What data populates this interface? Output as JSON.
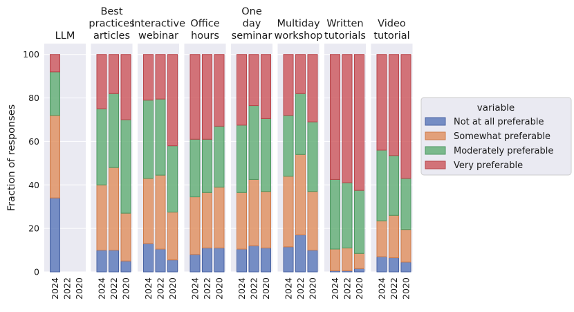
{
  "chart_data": {
    "type": "bar",
    "stacked": true,
    "ylabel": "Fraction of responses",
    "ylim": [
      0,
      105
    ],
    "yticks": [
      0,
      20,
      40,
      60,
      80,
      100
    ],
    "grid": true,
    "legend": {
      "title": "variable",
      "placement": "right",
      "entries": [
        "Not at all preferable",
        "Somewhat preferable",
        "Moderately preferable",
        "Very preferable"
      ]
    },
    "colors": [
      "#5875b8",
      "#e08d5b",
      "#5fac72",
      "#cc5459"
    ],
    "years": [
      "2024",
      "2022",
      "2020"
    ],
    "facets": [
      {
        "title": [
          "LLM"
        ],
        "values": {
          "2024": [
            34,
            38,
            20,
            8
          ],
          "2022": null,
          "2020": null
        }
      },
      {
        "title": [
          "Best",
          "practices",
          "articles"
        ],
        "values": {
          "2024": [
            10,
            30,
            35,
            25
          ],
          "2022": [
            10,
            38,
            34,
            18
          ],
          "2020": [
            5,
            22,
            43,
            30
          ]
        }
      },
      {
        "title": [
          "Interactive",
          "webinar"
        ],
        "values": {
          "2024": [
            13,
            30,
            36,
            21
          ],
          "2022": [
            10.5,
            34,
            35,
            20.5
          ],
          "2020": [
            5.5,
            22,
            30.5,
            42
          ]
        }
      },
      {
        "title": [
          "Office",
          "hours"
        ],
        "values": {
          "2024": [
            8,
            26.5,
            26.5,
            39
          ],
          "2022": [
            11,
            25.5,
            24.5,
            39
          ],
          "2020": [
            11,
            28,
            28,
            33
          ]
        }
      },
      {
        "title": [
          "One",
          "day",
          "seminar"
        ],
        "values": {
          "2024": [
            10.5,
            26,
            31,
            32.5
          ],
          "2022": [
            12,
            30.5,
            34,
            23.5
          ],
          "2020": [
            11,
            26,
            33.5,
            29.5
          ]
        }
      },
      {
        "title": [
          "Multiday",
          "workshop"
        ],
        "values": {
          "2024": [
            11.5,
            32.5,
            28,
            28
          ],
          "2022": [
            17,
            37,
            28,
            18
          ],
          "2020": [
            10,
            27,
            32,
            31
          ]
        }
      },
      {
        "title": [
          "Written",
          "tutorials"
        ],
        "values": {
          "2024": [
            0.5,
            10,
            32,
            57.5
          ],
          "2022": [
            0.5,
            10.5,
            30,
            59
          ],
          "2020": [
            1.5,
            7,
            29,
            62.5
          ]
        }
      },
      {
        "title": [
          "Video",
          "tutorial"
        ],
        "values": {
          "2024": [
            7,
            16.5,
            32.5,
            44
          ],
          "2022": [
            6.5,
            19.5,
            27.5,
            46.5
          ],
          "2020": [
            4.5,
            15,
            23.5,
            57
          ]
        }
      }
    ]
  }
}
